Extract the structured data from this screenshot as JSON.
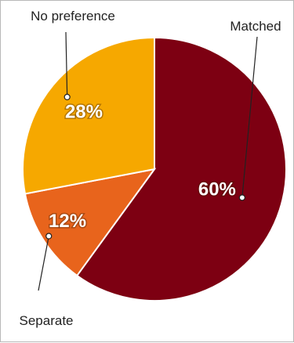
{
  "chart_data": {
    "type": "pie",
    "title": "",
    "slices": [
      {
        "label": "Matched",
        "value": 60,
        "value_label": "60%",
        "color": "#7d0012"
      },
      {
        "label": "Separate",
        "value": 12,
        "value_label": "12%",
        "color": "#e8641c"
      },
      {
        "label": "No preference",
        "value": 28,
        "value_label": "28%",
        "color": "#f6a800"
      }
    ],
    "start": "top",
    "direction": "clockwise",
    "slice_border_color": "#ffffff",
    "legend": "none (callout labels)"
  }
}
